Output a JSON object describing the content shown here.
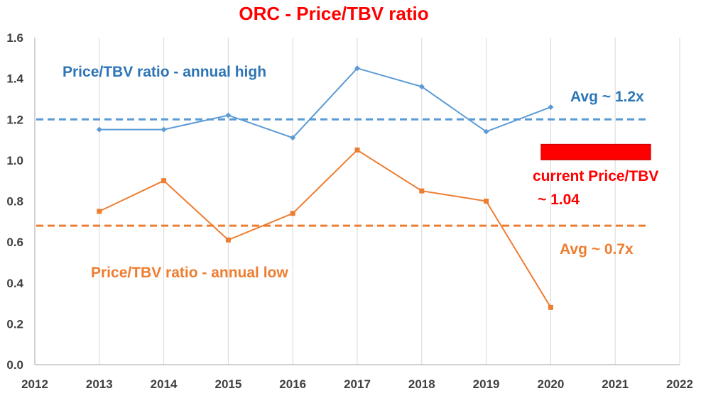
{
  "chart_data": {
    "type": "line",
    "title": "ORC - Price/TBV ratio",
    "xlabel": "",
    "ylabel": "",
    "xlim": [
      2012,
      2022
    ],
    "ylim": [
      0.0,
      1.6
    ],
    "x_ticks": [
      "2012",
      "2013",
      "2014",
      "2015",
      "2016",
      "2017",
      "2018",
      "2019",
      "2020",
      "2021",
      "2022"
    ],
    "y_ticks": [
      "0.0",
      "0.2",
      "0.4",
      "0.6",
      "0.8",
      "1.0",
      "1.2",
      "1.4",
      "1.6"
    ],
    "grid": "vertical",
    "colors": {
      "high": "#5B9BD5",
      "low": "#ED7D31",
      "current": "#FF0000",
      "title": "#FF0000",
      "axis_text": "#404040",
      "grid": "#D9D9D9"
    },
    "series": [
      {
        "name": "Price/TBV ratio - annual high",
        "x": [
          2013,
          2014,
          2015,
          2016,
          2017,
          2018,
          2019,
          2020
        ],
        "y": [
          1.15,
          1.15,
          1.22,
          1.11,
          1.45,
          1.36,
          1.14,
          1.26
        ]
      },
      {
        "name": "Price/TBV ratio - annual low",
        "x": [
          2013,
          2014,
          2015,
          2016,
          2017,
          2018,
          2019,
          2020
        ],
        "y": [
          0.75,
          0.9,
          0.61,
          0.74,
          1.05,
          0.85,
          0.8,
          0.28
        ]
      }
    ],
    "reference_lines": [
      {
        "label": "Avg ~ 1.2x",
        "y": 1.2,
        "x_range": [
          2012,
          2021.5
        ],
        "style": "dashed",
        "color_key": "high"
      },
      {
        "label": "Avg ~ 0.7x",
        "y": 0.68,
        "x_range": [
          2012,
          2021.5
        ],
        "style": "dashed",
        "color_key": "low"
      }
    ],
    "current_marker": {
      "line1": "current Price/TBV",
      "line2": "~ 1.04",
      "value": 1.04,
      "x_range": [
        2019.85,
        2021.55
      ]
    }
  }
}
